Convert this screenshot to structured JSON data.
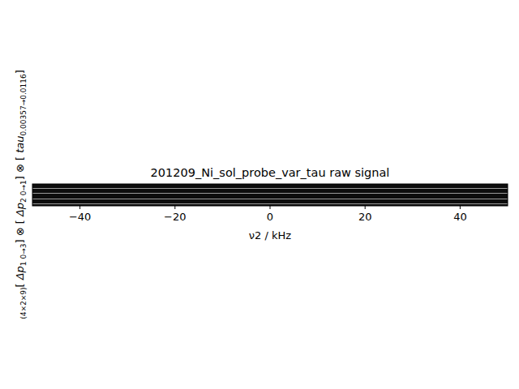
{
  "chart_data": {
    "type": "image",
    "title": "201209_Ni_sol_probe_var_tau raw signal",
    "xlabel": "ν2 / kHz",
    "ylabel": {
      "dims": "(4×2×9)",
      "open": "[ ",
      "close": "]",
      "joiner": " ⊗ ",
      "terms": [
        {
          "name": "Δp",
          "sub": "1 0→3"
        },
        {
          "name": "Δp",
          "sub": "2 0→1"
        },
        {
          "name": "tau",
          "sub": "0.00357→0.0116"
        }
      ]
    },
    "xlim": [
      -50,
      50
    ],
    "xticks": [
      -40,
      -20,
      0,
      20,
      40
    ],
    "tick_labels": "x"
  }
}
